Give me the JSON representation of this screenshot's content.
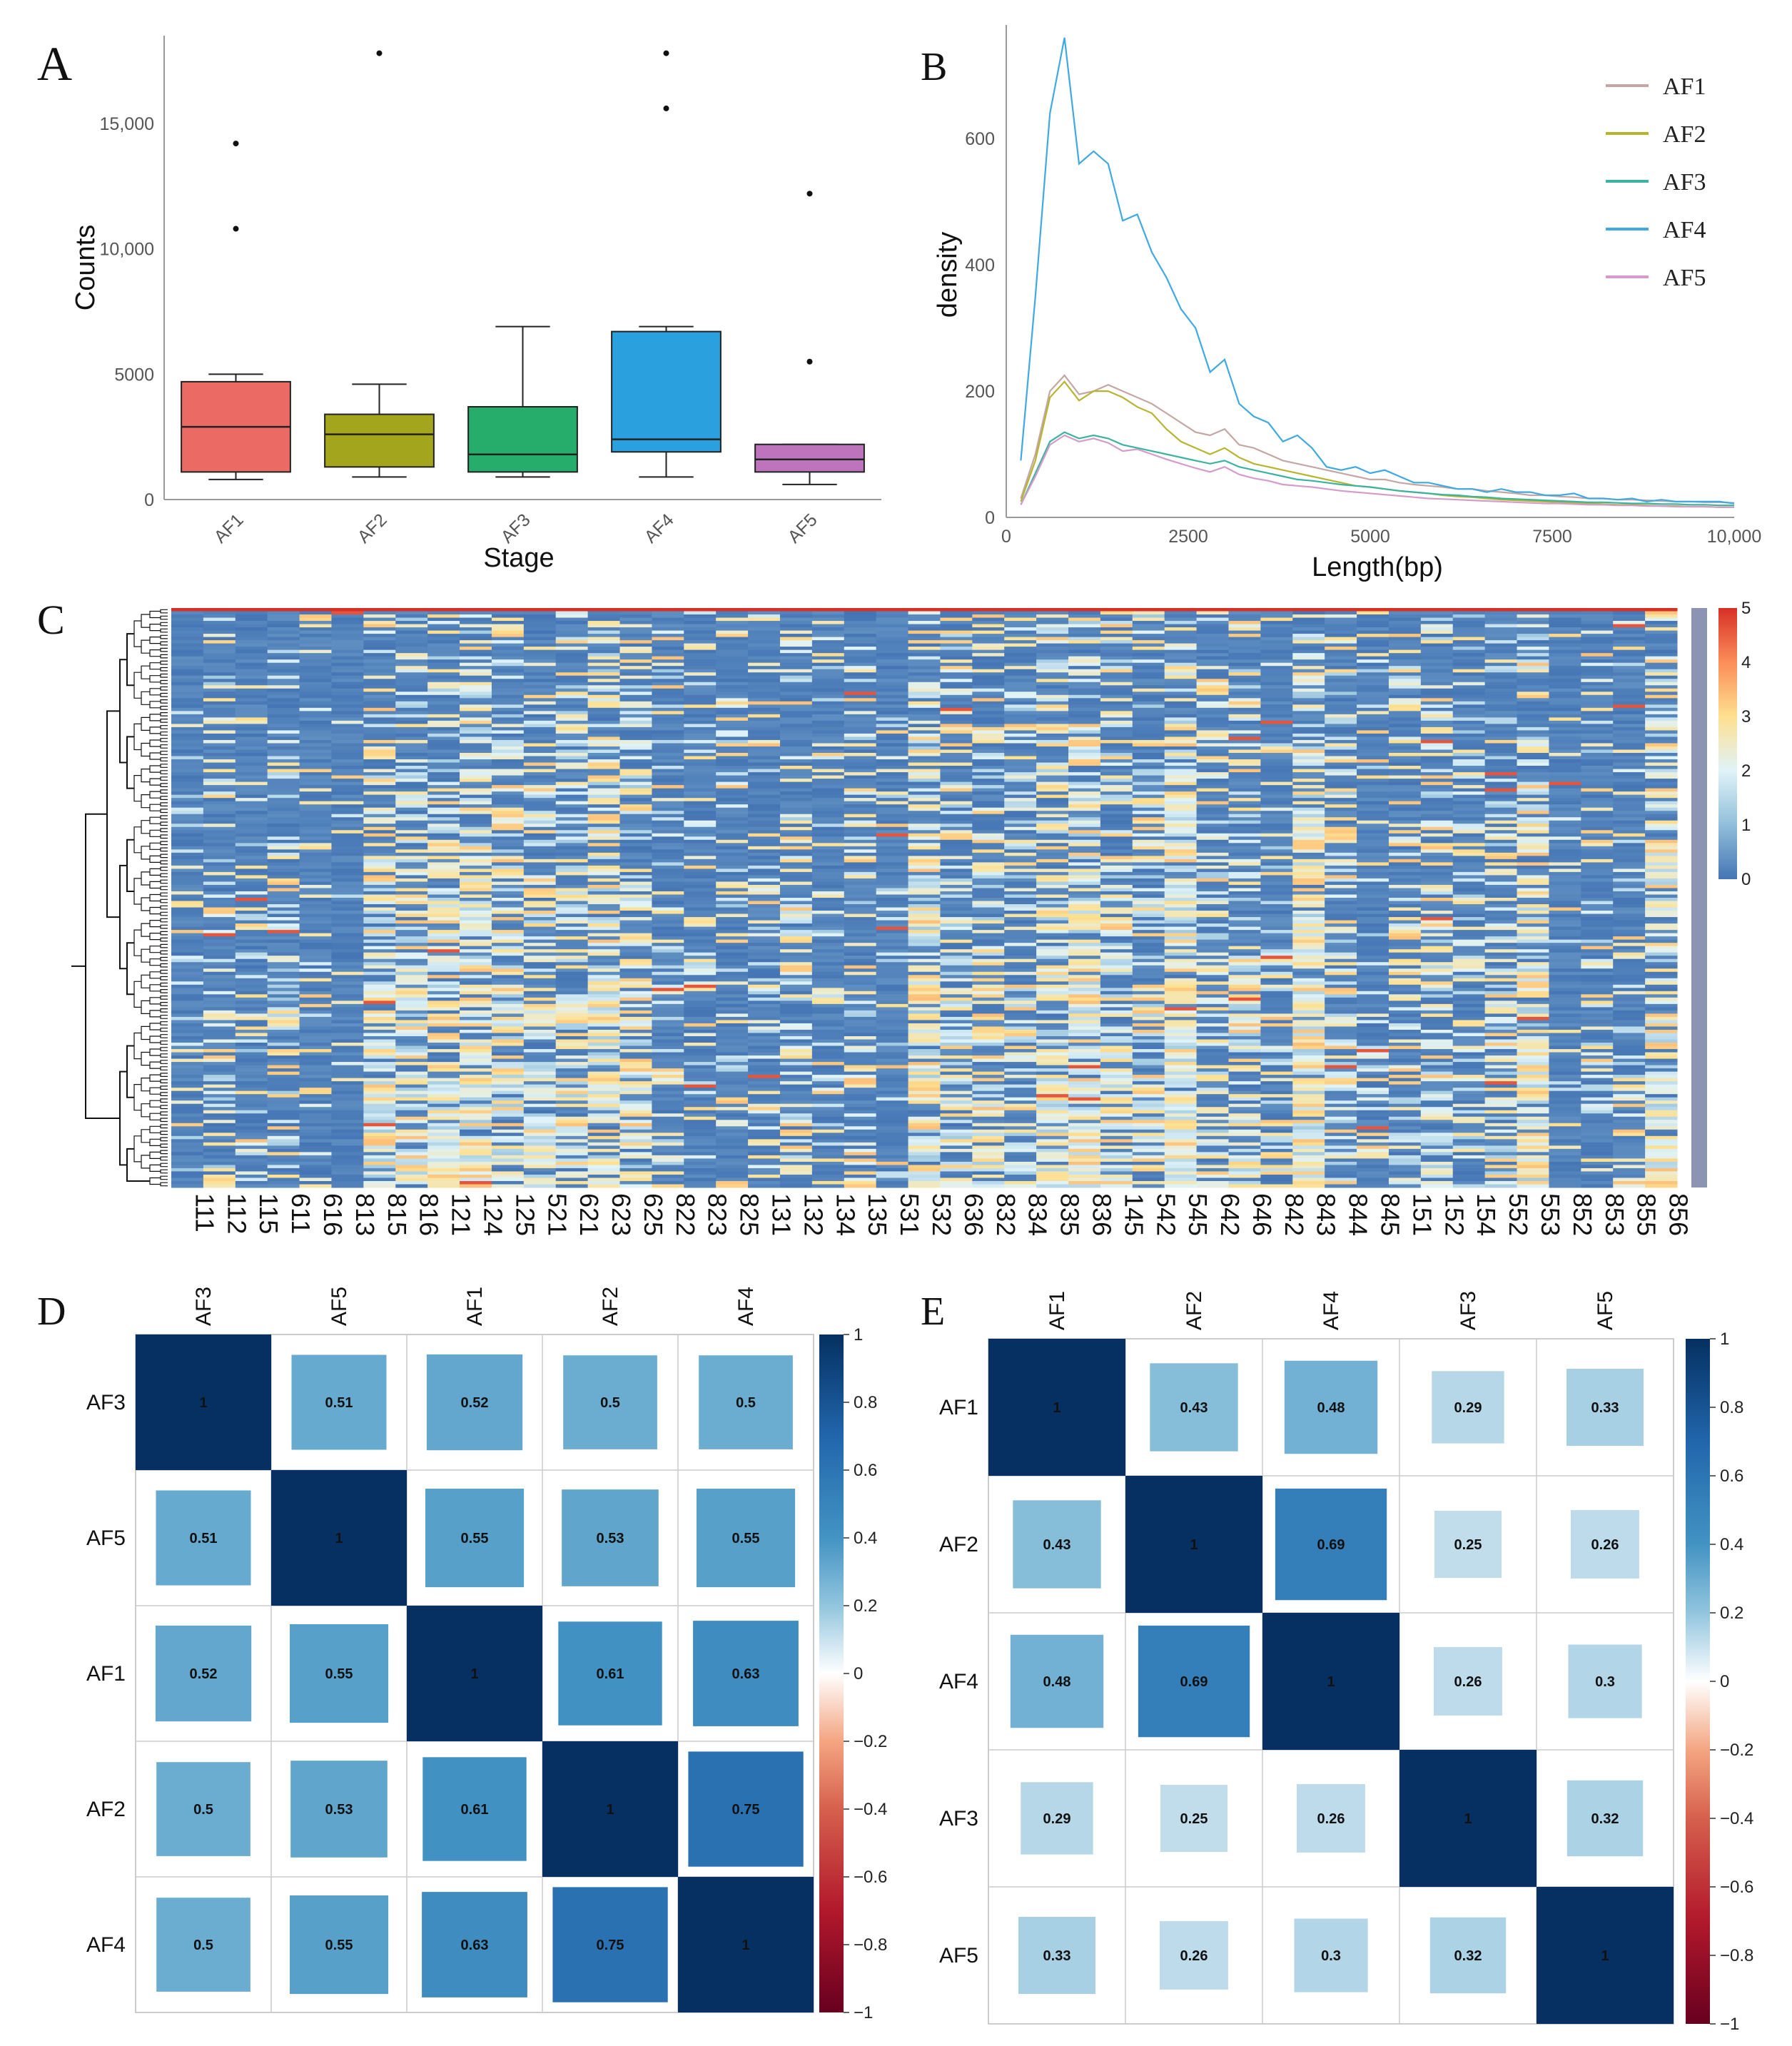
{
  "panels": {
    "a": "A",
    "b": "B",
    "c": "C",
    "d": "D",
    "e": "E"
  },
  "chart_data": [
    {
      "id": "A",
      "type": "box",
      "title": "",
      "xlabel": "Stage",
      "ylabel": "Counts",
      "categories": [
        "AF1",
        "AF2",
        "AF3",
        "AF4",
        "AF5"
      ],
      "ylim": [
        0,
        18500
      ],
      "yticks": [
        0,
        5000,
        10000,
        15000
      ],
      "ytick_labels": [
        "0",
        "5000",
        "10,000",
        "15,000"
      ],
      "boxes": [
        {
          "name": "AF1",
          "color": "#EC6A64",
          "min": 800,
          "q1": 1100,
          "median": 2900,
          "q3": 4700,
          "max": 5000,
          "outliers": [
            10800,
            14200
          ]
        },
        {
          "name": "AF2",
          "color": "#A3A51C",
          "min": 900,
          "q1": 1300,
          "median": 2600,
          "q3": 3400,
          "max": 4600,
          "outliers": [
            17800
          ]
        },
        {
          "name": "AF3",
          "color": "#26AD6C",
          "min": 900,
          "q1": 1100,
          "median": 1800,
          "q3": 3700,
          "max": 6900,
          "outliers": []
        },
        {
          "name": "AF4",
          "color": "#2AA1DE",
          "min": 900,
          "q1": 1900,
          "median": 2400,
          "q3": 6700,
          "max": 6900,
          "outliers": [
            15600,
            17800
          ]
        },
        {
          "name": "AF5",
          "color": "#BE74BC",
          "min": 600,
          "q1": 1100,
          "median": 1600,
          "q3": 2200,
          "max": 2200,
          "outliers": [
            5500,
            12200
          ]
        }
      ]
    },
    {
      "id": "B",
      "type": "line",
      "xlabel": "Length(bp)",
      "ylabel": "density",
      "xlim": [
        0,
        10000
      ],
      "ylim": [
        0,
        780
      ],
      "xticks": [
        0,
        2500,
        5000,
        7500,
        10000
      ],
      "xtick_labels": [
        "0",
        "2500",
        "5000",
        "7500",
        "10,000"
      ],
      "yticks": [
        0,
        200,
        400,
        600
      ],
      "ytick_labels": [
        "0",
        "200",
        "400",
        "600"
      ],
      "x": [
        200,
        400,
        600,
        800,
        1000,
        1200,
        1400,
        1600,
        1800,
        2000,
        2200,
        2400,
        2600,
        2800,
        3000,
        3200,
        3400,
        3600,
        3800,
        4000,
        4200,
        4400,
        4600,
        4800,
        5000,
        5200,
        5400,
        5600,
        5800,
        6000,
        6200,
        6400,
        6600,
        6800,
        7000,
        7200,
        7400,
        7600,
        7800,
        8000,
        8200,
        8400,
        8600,
        8800,
        9000,
        9200,
        9400,
        9600,
        9800,
        10000
      ],
      "series": [
        {
          "name": "AF1",
          "color": "#C4A7A4",
          "values": [
            30,
            100,
            200,
            225,
            195,
            200,
            210,
            200,
            190,
            180,
            165,
            150,
            135,
            130,
            140,
            115,
            110,
            100,
            90,
            85,
            80,
            75,
            70,
            65,
            60,
            60,
            55,
            52,
            50,
            48,
            45,
            45,
            42,
            40,
            38,
            35,
            35,
            33,
            32,
            30,
            30,
            28,
            28,
            27,
            26,
            25,
            25,
            24,
            24,
            23
          ]
        },
        {
          "name": "AF2",
          "color": "#B7B530",
          "values": [
            25,
            90,
            190,
            215,
            185,
            200,
            200,
            190,
            175,
            165,
            140,
            120,
            110,
            100,
            110,
            95,
            85,
            80,
            75,
            70,
            65,
            60,
            55,
            50,
            48,
            45,
            42,
            40,
            38,
            35,
            33,
            32,
            30,
            28,
            27,
            26,
            25,
            24,
            23,
            22,
            21,
            20,
            20,
            19,
            18,
            18,
            17,
            17,
            16,
            16
          ]
        },
        {
          "name": "AF3",
          "color": "#3AB3A0",
          "values": [
            20,
            70,
            120,
            135,
            125,
            130,
            125,
            115,
            110,
            105,
            100,
            95,
            90,
            85,
            90,
            80,
            75,
            70,
            65,
            60,
            58,
            55,
            52,
            50,
            48,
            45,
            42,
            40,
            38,
            36,
            35,
            33,
            32,
            30,
            29,
            28,
            27,
            26,
            25,
            24,
            24,
            23,
            22,
            22,
            21,
            21,
            20,
            20,
            19,
            19
          ]
        },
        {
          "name": "AF4",
          "color": "#3FA9E1",
          "values": [
            90,
            350,
            640,
            760,
            560,
            580,
            560,
            470,
            480,
            420,
            380,
            330,
            300,
            230,
            250,
            180,
            160,
            150,
            120,
            130,
            110,
            80,
            75,
            80,
            70,
            75,
            65,
            55,
            55,
            50,
            45,
            45,
            40,
            45,
            40,
            40,
            35,
            35,
            38,
            30,
            30,
            28,
            30,
            25,
            28,
            25,
            25,
            25,
            25,
            22
          ]
        },
        {
          "name": "AF5",
          "color": "#D49CCB",
          "values": [
            20,
            65,
            115,
            130,
            120,
            125,
            118,
            105,
            108,
            100,
            92,
            85,
            78,
            72,
            80,
            68,
            62,
            58,
            52,
            50,
            48,
            45,
            42,
            40,
            38,
            36,
            34,
            32,
            30,
            29,
            28,
            27,
            26,
            25,
            24,
            23,
            22,
            22,
            21,
            20,
            20,
            19,
            19,
            18,
            18,
            17,
            17,
            17,
            16,
            16
          ]
        }
      ]
    },
    {
      "id": "C",
      "type": "heatmap",
      "columns": [
        "111",
        "112",
        "115",
        "611",
        "616",
        "813",
        "815",
        "816",
        "121",
        "124",
        "125",
        "521",
        "621",
        "623",
        "625",
        "822",
        "823",
        "825",
        "131",
        "132",
        "134",
        "135",
        "531",
        "532",
        "636",
        "832",
        "834",
        "835",
        "836",
        "145",
        "542",
        "545",
        "642",
        "646",
        "842",
        "843",
        "844",
        "845",
        "151",
        "152",
        "154",
        "552",
        "553",
        "852",
        "853",
        "855",
        "856"
      ],
      "column_means": [
        0.4,
        0.7,
        0.5,
        0.9,
        0.5,
        0.15,
        1.6,
        1.4,
        1.6,
        1.8,
        1.6,
        1.3,
        1.2,
        1.7,
        1.5,
        0.5,
        0.5,
        0.5,
        0.6,
        0.9,
        0.6,
        0.8,
        0.3,
        1.9,
        1.4,
        1.2,
        1.0,
        1.7,
        2.0,
        1.4,
        1.2,
        2.2,
        1.2,
        1.3,
        0.6,
        2.2,
        1.1,
        0.5,
        1.0,
        1.2,
        0.9,
        1.2,
        1.8,
        0.1,
        0.4,
        0.5,
        1.8
      ],
      "row_count": 180,
      "colorbar": {
        "min": 0,
        "max": 5,
        "ticks": [
          0,
          1,
          2,
          3,
          4,
          5
        ],
        "tick_labels": [
          "0",
          "1",
          "2",
          "3",
          "4",
          "5"
        ],
        "colors": [
          "#4575B4",
          "#91BFDB",
          "#E0F3F8",
          "#FEE090",
          "#FC8D59",
          "#D73027"
        ]
      }
    },
    {
      "id": "D",
      "type": "heatmap",
      "subtype": "correlation",
      "labels": [
        "AF3",
        "AF5",
        "AF1",
        "AF2",
        "AF4"
      ],
      "matrix": [
        [
          1,
          0.51,
          0.52,
          0.5,
          0.5
        ],
        [
          0.51,
          1,
          0.55,
          0.53,
          0.55
        ],
        [
          0.52,
          0.55,
          1,
          0.61,
          0.63
        ],
        [
          0.5,
          0.53,
          0.61,
          1,
          0.75
        ],
        [
          0.5,
          0.55,
          0.63,
          0.75,
          1
        ]
      ],
      "display": [
        [
          "1",
          "0.51",
          "0.52",
          "0.5",
          "0.5"
        ],
        [
          "0.51",
          "1",
          "0.55",
          "0.53",
          "0.55"
        ],
        [
          "0.52",
          "0.55",
          "1",
          "0.61",
          "0.63"
        ],
        [
          "0.5",
          "0.53",
          "0.61",
          "1",
          "0.75"
        ],
        [
          "0.5",
          "0.55",
          "0.63",
          "0.75",
          "1"
        ]
      ],
      "colorbar": {
        "ticks": [
          1,
          0.8,
          0.6,
          0.4,
          0.2,
          0,
          -0.2,
          -0.4,
          -0.6,
          -0.8,
          -1
        ],
        "tick_labels": [
          "1",
          "0.8",
          "0.6",
          "0.4",
          "0.2",
          "0",
          "−0.2",
          "−0.4",
          "−0.6",
          "−0.8",
          "−1"
        ]
      }
    },
    {
      "id": "E",
      "type": "heatmap",
      "subtype": "correlation",
      "labels": [
        "AF1",
        "AF2",
        "AF4",
        "AF3",
        "AF5"
      ],
      "matrix": [
        [
          1,
          0.43,
          0.48,
          0.29,
          0.33
        ],
        [
          0.43,
          1,
          0.69,
          0.25,
          0.26
        ],
        [
          0.48,
          0.69,
          1,
          0.26,
          0.3
        ],
        [
          0.29,
          0.25,
          0.26,
          1,
          0.32
        ],
        [
          0.33,
          0.26,
          0.3,
          0.32,
          1
        ]
      ],
      "display": [
        [
          "1",
          "0.43",
          "0.48",
          "0.29",
          "0.33"
        ],
        [
          "0.43",
          "1",
          "0.69",
          "0.25",
          "0.26"
        ],
        [
          "0.48",
          "0.69",
          "1",
          "0.26",
          "0.3"
        ],
        [
          "0.29",
          "0.25",
          "0.26",
          "1",
          "0.32"
        ],
        [
          "0.33",
          "0.26",
          "0.3",
          "0.32",
          "1"
        ]
      ],
      "colorbar": {
        "ticks": [
          1,
          0.8,
          0.6,
          0.4,
          0.2,
          0,
          -0.2,
          -0.4,
          -0.6,
          -0.8,
          -1
        ],
        "tick_labels": [
          "1",
          "0.8",
          "0.6",
          "0.4",
          "0.2",
          "0",
          "−0.2",
          "−0.4",
          "−0.6",
          "−0.8",
          "−1"
        ]
      }
    }
  ]
}
